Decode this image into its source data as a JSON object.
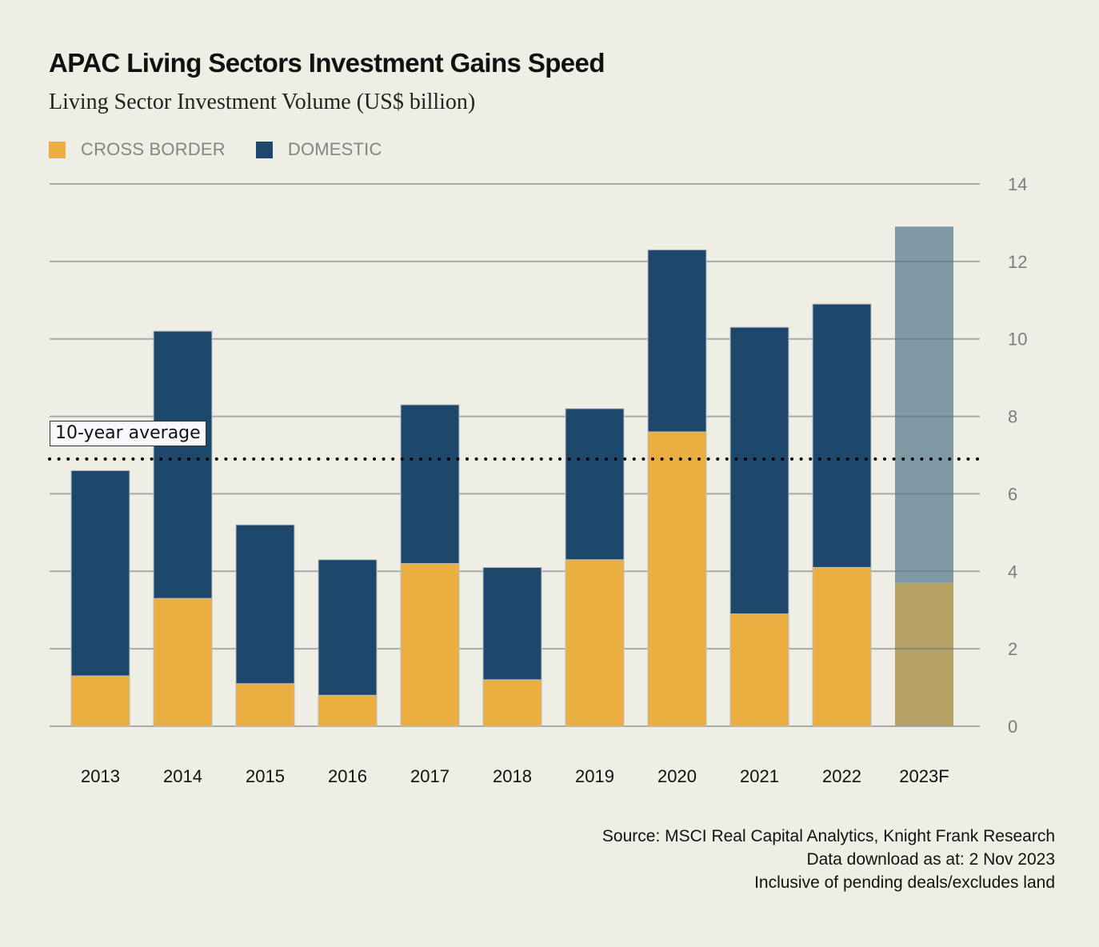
{
  "header": {
    "title": "APAC Living Sectors Investment Gains Speed",
    "subtitle": "Living Sector Investment Volume (US$ billion)"
  },
  "legend": [
    {
      "label": "CROSS BORDER",
      "color": "#ebae41"
    },
    {
      "label": "DOMESTIC",
      "color": "#1e476c"
    }
  ],
  "annotation": {
    "label": "10-year average",
    "value": 6.9
  },
  "footer": {
    "source": "Source: MSCI Real Capital Analytics, Knight Frank Research",
    "download": "Data download as at: 2 Nov 2023",
    "note": "Inclusive of pending deals/excludes land"
  },
  "chart_data": {
    "type": "bar",
    "stacked": true,
    "title": "APAC Living Sectors Investment Gains Speed",
    "subtitle": "Living Sector Investment Volume (US$ billion)",
    "xlabel": "",
    "ylabel": "US$ billion",
    "categories": [
      "2013",
      "2014",
      "2015",
      "2016",
      "2017",
      "2018",
      "2019",
      "2020",
      "2021",
      "2022",
      "2023F"
    ],
    "series": [
      {
        "name": "CROSS BORDER",
        "color": "#ebae41",
        "forecast_color": "#b5a163",
        "values": [
          1.3,
          3.3,
          1.1,
          0.8,
          4.2,
          1.2,
          4.3,
          7.6,
          2.9,
          4.1,
          3.7
        ]
      },
      {
        "name": "DOMESTIC",
        "color": "#1e476c",
        "forecast_color": "#7f9aa5",
        "values": [
          5.3,
          6.9,
          4.1,
          3.5,
          4.1,
          2.9,
          3.9,
          4.7,
          7.4,
          6.8,
          9.2
        ]
      }
    ],
    "totals": [
      6.6,
      10.2,
      5.2,
      4.3,
      8.3,
      4.1,
      8.2,
      12.3,
      10.3,
      10.9,
      12.9
    ],
    "reference_line": {
      "label": "10-year average",
      "value": 6.9,
      "style": "dotted"
    },
    "ylim": [
      0,
      14
    ],
    "yticks": [
      0,
      2,
      4,
      6,
      8,
      10,
      12,
      14
    ],
    "y_axis_side": "right",
    "grid": true,
    "legend_position": "top-left",
    "forecast_category": "2023F"
  }
}
